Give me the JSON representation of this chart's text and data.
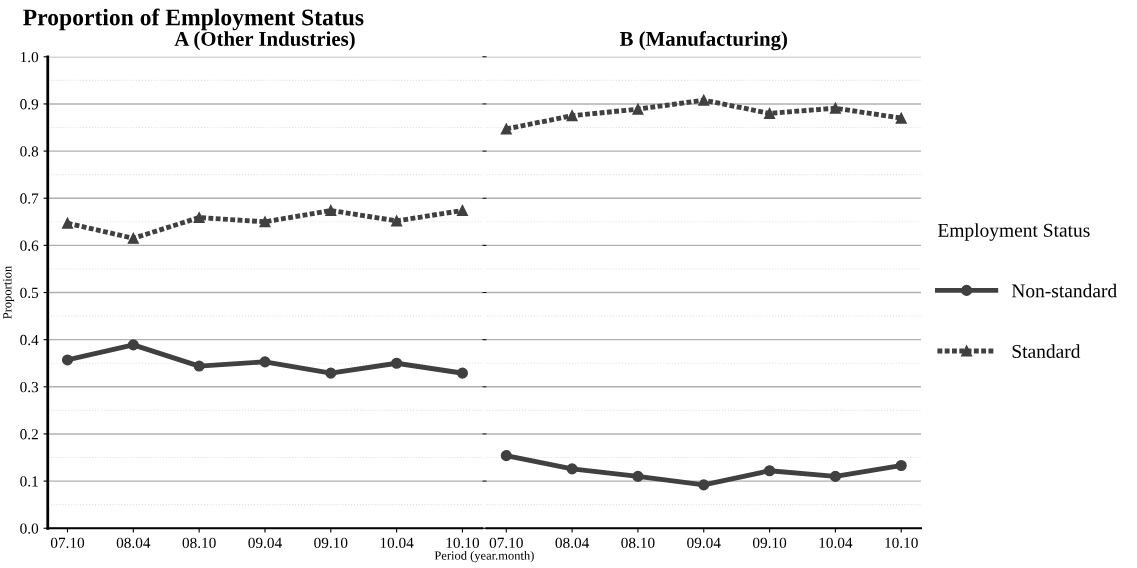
{
  "chart_data": [
    {
      "type": "line",
      "title": "Proportion of Employment Status",
      "subtitle": "A (Other Industries)",
      "xlabel": "Period (year.month)",
      "ylabel": "Proportion",
      "categories": [
        "07.10",
        "08.04",
        "08.10",
        "09.04",
        "09.10",
        "10.04",
        "10.10"
      ],
      "series": [
        {
          "color": "#404040",
          "marker": "circle",
          "line_style": "solid",
          "values": [
            0.357,
            0.389,
            0.344,
            0.353,
            0.329,
            0.35,
            0.329
          ]
        },
        {
          "color": "#404040",
          "marker": "triangle",
          "line_style": "dotted",
          "values": [
            0.647,
            0.615,
            0.659,
            0.65,
            0.674,
            0.652,
            0.674
          ]
        }
      ],
      "ylim": [
        0,
        1
      ],
      "yticks": [
        {
          "value": 0,
          "label": "0.0"
        },
        0.1,
        0.2,
        0.3,
        0.4,
        0.5,
        0.6,
        0.7,
        0.8,
        0.9,
        {
          "value": 1,
          "label": "1.0"
        }
      ],
      "grid": "y"
    },
    {
      "type": "line",
      "subtitle": "B (Manufacturing)",
      "categories": [
        "07.10",
        "08.04",
        "08.10",
        "09.04",
        "09.10",
        "10.04",
        "10.10"
      ],
      "series": [
        {
          "name": "Non-standard",
          "color": "#404040",
          "marker": "circle",
          "line_style": "solid",
          "values": [
            0.154,
            0.126,
            0.11,
            0.092,
            0.122,
            0.11,
            0.133
          ]
        },
        {
          "name": "Standard",
          "color": "#404040",
          "marker": "triangle",
          "line_style": "dotted",
          "values": [
            0.847,
            0.875,
            0.889,
            0.908,
            0.88,
            0.891,
            0.87
          ]
        }
      ],
      "ylim": [
        0,
        1
      ],
      "yticks": [
        0,
        0.1,
        0.2,
        0.3,
        0.4,
        0.5,
        0.6,
        0.7,
        0.8,
        0.9,
        1
      ],
      "grid": "y",
      "tick_labels": "x",
      "legend": "right",
      "legend_title": "Employment Status"
    }
  ]
}
